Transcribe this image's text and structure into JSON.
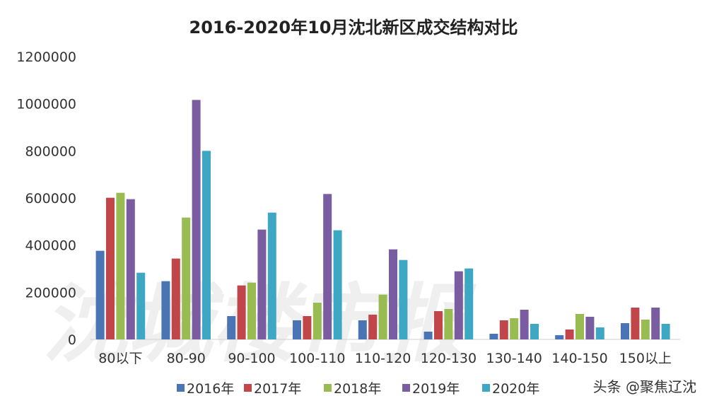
{
  "chart_data": {
    "type": "bar",
    "title": "2016-2020年10月沈北新区成交结构对比",
    "xlabel": "",
    "ylabel": "",
    "ylim": [
      0,
      1200000
    ],
    "yticks": [
      0,
      200000,
      400000,
      600000,
      800000,
      1000000,
      1200000
    ],
    "grid": false,
    "legend": "bottom",
    "categories": [
      "80以下",
      "80-90",
      "90-100",
      "100-110",
      "110-120",
      "120-130",
      "130-140",
      "140-150",
      "150以上"
    ],
    "series": [
      {
        "name": "2016年",
        "color": "#4a74b4",
        "values": [
          376000,
          247000,
          99000,
          81000,
          81000,
          33000,
          24000,
          18000,
          69000
        ]
      },
      {
        "name": "2017年",
        "color": "#c0464a",
        "values": [
          601000,
          343000,
          229000,
          99000,
          105000,
          120000,
          81000,
          42000,
          135000
        ]
      },
      {
        "name": "2018年",
        "color": "#98bb52",
        "values": [
          622000,
          517000,
          241000,
          156000,
          190000,
          129000,
          90000,
          108000,
          84000
        ]
      },
      {
        "name": "2019年",
        "color": "#7a5ca0",
        "values": [
          595000,
          1016000,
          466000,
          617000,
          382000,
          289000,
          126000,
          96000,
          135000
        ]
      },
      {
        "name": "2020年",
        "color": "#3ea8c4",
        "values": [
          283000,
          800000,
          538000,
          463000,
          337000,
          301000,
          66000,
          51000,
          66000
        ]
      }
    ]
  },
  "watermark": "沈城楼市报",
  "source_credit": "头条 @聚焦辽沈"
}
